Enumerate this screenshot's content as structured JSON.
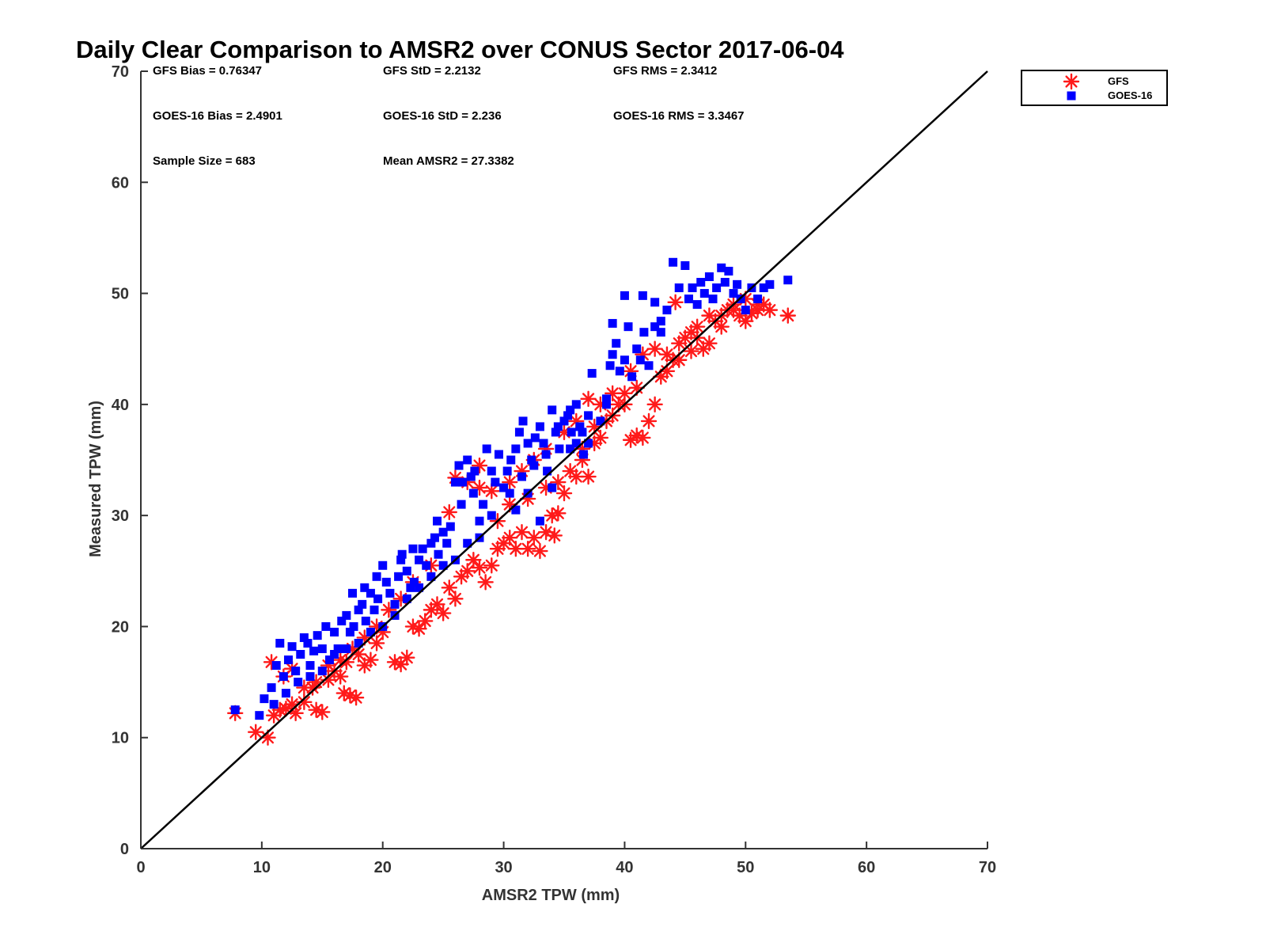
{
  "chart_data": {
    "type": "scatter",
    "title": "Daily Clear Comparison to AMSR2 over CONUS Sector 2017-06-04",
    "xlabel": "AMSR2 TPW (mm)",
    "ylabel": "Measured TPW (mm)",
    "xlim": [
      0,
      70
    ],
    "ylim": [
      0,
      70
    ],
    "xticks": [
      0,
      10,
      20,
      30,
      40,
      50,
      60,
      70
    ],
    "yticks": [
      0,
      10,
      20,
      30,
      40,
      50,
      60,
      70
    ],
    "reference_line": "one-to-one",
    "grid": false,
    "legend_position": "outside-top-right",
    "stats": [
      {
        "text": "GFS Bias = 0.76347"
      },
      {
        "text": "GFS StD = 2.2132"
      },
      {
        "text": "GFS RMS = 2.3412"
      },
      {
        "text": "GOES-16 Bias = 2.4901"
      },
      {
        "text": "GOES-16 StD = 2.236"
      },
      {
        "text": "GOES-16 RMS = 3.3467"
      },
      {
        "text": "Sample Size = 683"
      },
      {
        "text": "Mean AMSR2 = 27.3382"
      }
    ],
    "series": [
      {
        "name": "GFS",
        "marker": "asterisk",
        "color": "#ff1a1a",
        "points": [
          [
            7.8,
            12.2
          ],
          [
            9.5,
            10.5
          ],
          [
            10.5,
            10.0
          ],
          [
            11.0,
            12.0
          ],
          [
            12.0,
            12.6
          ],
          [
            12.8,
            12.2
          ],
          [
            13.5,
            13.2
          ],
          [
            14.5,
            12.5
          ],
          [
            15.0,
            12.3
          ],
          [
            14.2,
            14.5
          ],
          [
            15.5,
            15.2
          ],
          [
            16.0,
            16.0
          ],
          [
            16.8,
            14.0
          ],
          [
            17.3,
            13.8
          ],
          [
            17.8,
            13.6
          ],
          [
            16.5,
            15.5
          ],
          [
            17.0,
            16.8
          ],
          [
            18.0,
            17.5
          ],
          [
            18.5,
            16.5
          ],
          [
            19.0,
            17.0
          ],
          [
            19.5,
            18.5
          ],
          [
            20.0,
            19.5
          ],
          [
            21.0,
            16.8
          ],
          [
            21.5,
            16.6
          ],
          [
            22.0,
            17.2
          ],
          [
            22.5,
            20.0
          ],
          [
            23.0,
            19.8
          ],
          [
            23.5,
            20.5
          ],
          [
            24.0,
            21.5
          ],
          [
            24.5,
            22.0
          ],
          [
            25.0,
            21.2
          ],
          [
            25.5,
            23.5
          ],
          [
            26.0,
            22.5
          ],
          [
            26.5,
            24.5
          ],
          [
            27.0,
            25.0
          ],
          [
            27.5,
            26.0
          ],
          [
            28.0,
            25.3
          ],
          [
            28.5,
            24.0
          ],
          [
            29.0,
            25.5
          ],
          [
            29.5,
            27.0
          ],
          [
            30.0,
            27.5
          ],
          [
            30.5,
            28.0
          ],
          [
            31.0,
            27.0
          ],
          [
            31.5,
            28.5
          ],
          [
            32.0,
            27.0
          ],
          [
            32.5,
            28.0
          ],
          [
            33.0,
            26.8
          ],
          [
            33.5,
            28.5
          ],
          [
            34.0,
            30.0
          ],
          [
            34.5,
            30.2
          ],
          [
            34.2,
            28.2
          ],
          [
            35.0,
            32.0
          ],
          [
            35.5,
            34.0
          ],
          [
            36.0,
            33.5
          ],
          [
            36.5,
            35.0
          ],
          [
            37.0,
            33.5
          ],
          [
            37.5,
            36.5
          ],
          [
            38.0,
            37.0
          ],
          [
            38.5,
            38.5
          ],
          [
            39.0,
            39.0
          ],
          [
            39.5,
            40.0
          ],
          [
            40.0,
            41.0
          ],
          [
            40.5,
            36.8
          ],
          [
            41.0,
            37.2
          ],
          [
            41.5,
            37.0
          ],
          [
            42.0,
            38.5
          ],
          [
            42.5,
            40.0
          ],
          [
            43.0,
            42.5
          ],
          [
            43.5,
            43.0
          ],
          [
            44.0,
            44.0
          ],
          [
            44.5,
            45.5
          ],
          [
            45.0,
            46.0
          ],
          [
            45.5,
            46.5
          ],
          [
            46.0,
            47.0
          ],
          [
            46.5,
            45.0
          ],
          [
            47.0,
            45.5
          ],
          [
            47.5,
            47.5
          ],
          [
            48.0,
            48.0
          ],
          [
            48.5,
            48.5
          ],
          [
            49.0,
            49.0
          ],
          [
            49.5,
            48.0
          ],
          [
            50.0,
            47.5
          ],
          [
            50.5,
            48.2
          ],
          [
            51.0,
            48.5
          ],
          [
            51.5,
            49.0
          ],
          [
            52.0,
            48.5
          ],
          [
            53.5,
            48.0
          ],
          [
            44.2,
            49.2
          ],
          [
            25.5,
            30.3
          ],
          [
            26.0,
            33.4
          ],
          [
            27.0,
            33.0
          ],
          [
            28.0,
            32.5
          ],
          [
            29.0,
            32.2
          ],
          [
            24.0,
            25.5
          ],
          [
            22.5,
            24.0
          ],
          [
            21.5,
            22.5
          ],
          [
            20.5,
            21.5
          ],
          [
            19.5,
            20.0
          ],
          [
            18.5,
            19.0
          ],
          [
            17.5,
            18.0
          ],
          [
            16.5,
            17.0
          ],
          [
            15.5,
            16.5
          ],
          [
            14.5,
            15.0
          ],
          [
            13.5,
            14.5
          ],
          [
            12.5,
            13.0
          ],
          [
            11.5,
            12.5
          ],
          [
            10.8,
            16.8
          ],
          [
            11.8,
            15.5
          ],
          [
            12.5,
            16.2
          ],
          [
            30.5,
            33.0
          ],
          [
            31.5,
            34.0
          ],
          [
            32.5,
            35.0
          ],
          [
            33.5,
            36.0
          ],
          [
            35.0,
            37.5
          ],
          [
            36.0,
            38.5
          ],
          [
            37.0,
            40.5
          ],
          [
            38.0,
            40.0
          ],
          [
            40.5,
            43.0
          ],
          [
            41.5,
            44.5
          ],
          [
            42.5,
            45.0
          ],
          [
            46.0,
            46.0
          ],
          [
            47.0,
            48.0
          ],
          [
            48.0,
            47.0
          ],
          [
            49.0,
            48.5
          ],
          [
            50.0,
            49.5
          ],
          [
            51.0,
            49.0
          ],
          [
            28.0,
            34.5
          ],
          [
            29.5,
            29.5
          ],
          [
            30.5,
            31.0
          ],
          [
            32.0,
            31.5
          ],
          [
            33.5,
            32.5
          ],
          [
            34.5,
            33.0
          ],
          [
            36.5,
            36.0
          ],
          [
            37.5,
            38.0
          ],
          [
            39.0,
            41.0
          ],
          [
            40.0,
            40.0
          ],
          [
            41.0,
            41.5
          ],
          [
            43.5,
            44.5
          ],
          [
            44.5,
            44.0
          ],
          [
            45.5,
            44.8
          ]
        ]
      },
      {
        "name": "GOES-16",
        "marker": "square",
        "color": "#0000ff",
        "points": [
          [
            7.8,
            12.5
          ],
          [
            9.8,
            12.0
          ],
          [
            10.2,
            13.5
          ],
          [
            10.8,
            14.5
          ],
          [
            11.2,
            16.5
          ],
          [
            11.5,
            18.5
          ],
          [
            11.8,
            15.5
          ],
          [
            12.2,
            17.0
          ],
          [
            12.5,
            18.2
          ],
          [
            12.8,
            16.0
          ],
          [
            13.2,
            17.5
          ],
          [
            13.5,
            19.0
          ],
          [
            13.8,
            18.5
          ],
          [
            14.0,
            16.5
          ],
          [
            14.3,
            17.8
          ],
          [
            14.6,
            19.2
          ],
          [
            15.0,
            18.0
          ],
          [
            15.3,
            20.0
          ],
          [
            15.6,
            17.0
          ],
          [
            16.0,
            19.5
          ],
          [
            16.3,
            18.0
          ],
          [
            16.6,
            20.5
          ],
          [
            17.0,
            21.0
          ],
          [
            17.3,
            19.5
          ],
          [
            17.6,
            20.0
          ],
          [
            18.0,
            21.5
          ],
          [
            18.3,
            22.0
          ],
          [
            18.6,
            20.5
          ],
          [
            19.0,
            23.0
          ],
          [
            19.3,
            21.5
          ],
          [
            19.6,
            22.5
          ],
          [
            20.0,
            25.5
          ],
          [
            20.3,
            24.0
          ],
          [
            20.6,
            23.0
          ],
          [
            21.0,
            22.0
          ],
          [
            21.3,
            24.5
          ],
          [
            21.6,
            26.5
          ],
          [
            22.0,
            25.0
          ],
          [
            22.3,
            23.5
          ],
          [
            22.6,
            24.0
          ],
          [
            23.0,
            26.0
          ],
          [
            23.3,
            27.0
          ],
          [
            23.6,
            25.5
          ],
          [
            24.0,
            27.5
          ],
          [
            24.3,
            28.0
          ],
          [
            24.6,
            26.5
          ],
          [
            25.0,
            28.5
          ],
          [
            25.3,
            27.5
          ],
          [
            25.6,
            29.0
          ],
          [
            26.0,
            33.0
          ],
          [
            26.3,
            34.5
          ],
          [
            26.6,
            33.0
          ],
          [
            27.0,
            35.0
          ],
          [
            27.3,
            33.5
          ],
          [
            27.6,
            34.0
          ],
          [
            28.0,
            29.5
          ],
          [
            28.3,
            31.0
          ],
          [
            28.6,
            36.0
          ],
          [
            29.0,
            34.0
          ],
          [
            29.3,
            33.0
          ],
          [
            29.6,
            35.5
          ],
          [
            30.0,
            32.5
          ],
          [
            30.3,
            34.0
          ],
          [
            30.6,
            35.0
          ],
          [
            31.0,
            36.0
          ],
          [
            31.3,
            37.5
          ],
          [
            31.6,
            38.5
          ],
          [
            32.0,
            36.5
          ],
          [
            32.3,
            35.0
          ],
          [
            32.6,
            37.0
          ],
          [
            33.0,
            38.0
          ],
          [
            33.3,
            36.5
          ],
          [
            33.6,
            34.0
          ],
          [
            34.0,
            39.5
          ],
          [
            34.3,
            37.5
          ],
          [
            34.6,
            36.0
          ],
          [
            35.0,
            38.5
          ],
          [
            35.3,
            39.0
          ],
          [
            35.6,
            37.5
          ],
          [
            36.0,
            36.5
          ],
          [
            36.3,
            38.0
          ],
          [
            36.6,
            35.5
          ],
          [
            37.0,
            36.5
          ],
          [
            37.3,
            42.8
          ],
          [
            38.0,
            38.5
          ],
          [
            38.5,
            40.0
          ],
          [
            38.8,
            43.5
          ],
          [
            39.0,
            44.5
          ],
          [
            39.3,
            45.5
          ],
          [
            39.6,
            43.0
          ],
          [
            40.0,
            44.0
          ],
          [
            40.3,
            47.0
          ],
          [
            40.6,
            42.5
          ],
          [
            41.0,
            45.0
          ],
          [
            41.3,
            44.0
          ],
          [
            41.6,
            46.5
          ],
          [
            42.0,
            43.5
          ],
          [
            42.5,
            47.0
          ],
          [
            43.0,
            46.5
          ],
          [
            43.5,
            48.5
          ],
          [
            44.0,
            52.8
          ],
          [
            44.5,
            50.5
          ],
          [
            45.0,
            52.5
          ],
          [
            45.3,
            49.5
          ],
          [
            45.6,
            50.5
          ],
          [
            46.0,
            49.0
          ],
          [
            46.3,
            51.0
          ],
          [
            46.6,
            50.0
          ],
          [
            47.0,
            51.5
          ],
          [
            47.3,
            49.5
          ],
          [
            47.6,
            50.5
          ],
          [
            48.0,
            52.3
          ],
          [
            48.3,
            51.0
          ],
          [
            48.6,
            52.0
          ],
          [
            49.0,
            50.0
          ],
          [
            49.3,
            50.8
          ],
          [
            49.6,
            49.5
          ],
          [
            50.0,
            48.5
          ],
          [
            50.5,
            50.5
          ],
          [
            51.0,
            49.5
          ],
          [
            51.5,
            50.5
          ],
          [
            52.0,
            50.8
          ],
          [
            53.5,
            51.2
          ],
          [
            40.0,
            49.8
          ],
          [
            39.0,
            47.3
          ],
          [
            42.5,
            49.2
          ],
          [
            43.0,
            47.5
          ],
          [
            41.5,
            49.8
          ],
          [
            38.5,
            40.5
          ],
          [
            37.0,
            39.0
          ],
          [
            36.0,
            40.0
          ],
          [
            35.5,
            39.5
          ],
          [
            34.0,
            32.5
          ],
          [
            33.0,
            29.5
          ],
          [
            32.0,
            32.0
          ],
          [
            31.0,
            30.5
          ],
          [
            30.5,
            32.0
          ],
          [
            29.0,
            30.0
          ],
          [
            28.0,
            28.0
          ],
          [
            27.0,
            27.5
          ],
          [
            26.0,
            26.0
          ],
          [
            25.0,
            25.5
          ],
          [
            24.0,
            24.5
          ],
          [
            23.0,
            23.5
          ],
          [
            22.0,
            22.5
          ],
          [
            21.0,
            21.0
          ],
          [
            20.0,
            20.0
          ],
          [
            19.0,
            19.5
          ],
          [
            18.0,
            18.5
          ],
          [
            17.0,
            18.0
          ],
          [
            16.0,
            17.5
          ],
          [
            15.0,
            16.0
          ],
          [
            14.0,
            15.5
          ],
          [
            13.0,
            15.0
          ],
          [
            12.0,
            14.0
          ],
          [
            11.0,
            13.0
          ],
          [
            17.5,
            23.0
          ],
          [
            18.5,
            23.5
          ],
          [
            19.5,
            24.5
          ],
          [
            21.5,
            26.0
          ],
          [
            22.5,
            27.0
          ],
          [
            24.5,
            29.5
          ],
          [
            26.5,
            31.0
          ],
          [
            27.5,
            32.0
          ],
          [
            31.5,
            33.5
          ],
          [
            32.5,
            34.5
          ],
          [
            33.5,
            35.5
          ],
          [
            34.5,
            38.0
          ],
          [
            35.5,
            36.0
          ],
          [
            36.5,
            37.5
          ]
        ]
      }
    ]
  }
}
